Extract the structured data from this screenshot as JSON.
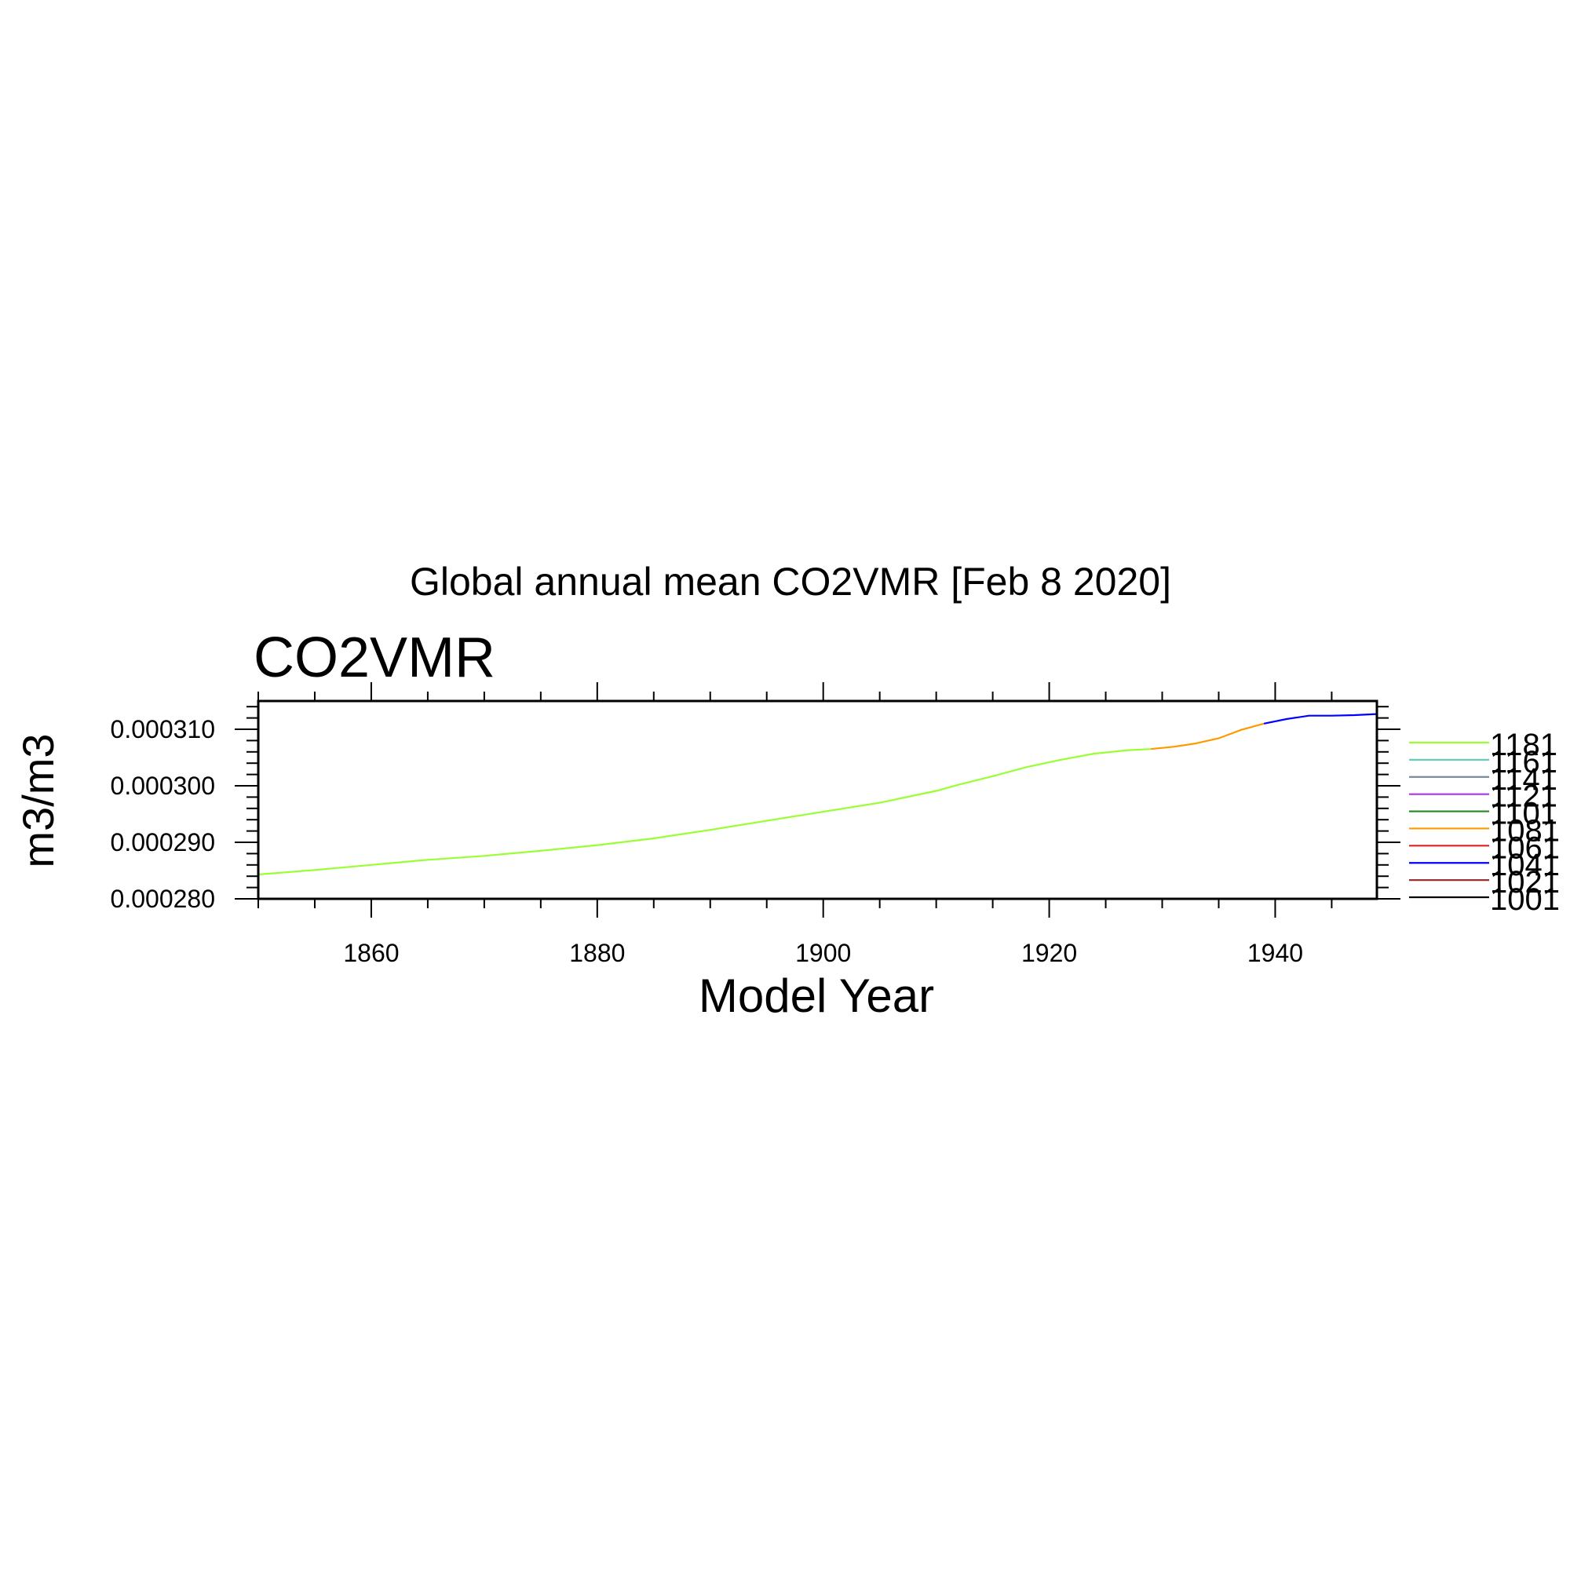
{
  "chart_data": {
    "type": "line",
    "title": "Global annual mean CO2VMR [Feb  8 2020]",
    "subtitle": "CO2VMR",
    "xlabel": "Model Year",
    "ylabel": "m3/m3",
    "xlim": [
      1850,
      1949
    ],
    "ylim": [
      0.00028,
      0.000315
    ],
    "x_ticks": [
      1860,
      1880,
      1900,
      1920,
      1940
    ],
    "y_ticks": [
      0.00028,
      0.00029,
      0.0003,
      0.00031
    ],
    "x_tick_labels": [
      "1860",
      "1880",
      "1900",
      "1920",
      "1940"
    ],
    "y_tick_labels": [
      "0.000280",
      "0.000290",
      "0.000300",
      "0.000310"
    ],
    "grid": false,
    "legend_position": "right",
    "series": [
      {
        "name": "1181",
        "color": "#99ff33",
        "x": [
          1850,
          1855,
          1860,
          1865,
          1870,
          1875,
          1880,
          1885,
          1890,
          1895,
          1900,
          1905,
          1910,
          1912,
          1915,
          1918,
          1921,
          1924,
          1927,
          1929
        ],
        "values": [
          0.0002843,
          0.0002851,
          0.000286,
          0.0002869,
          0.0002876,
          0.0002885,
          0.0002895,
          0.0002907,
          0.0002922,
          0.0002938,
          0.0002954,
          0.000297,
          0.0002991,
          0.0003002,
          0.0003017,
          0.0003033,
          0.0003046,
          0.0003057,
          0.0003063,
          0.0003065
        ]
      },
      {
        "name": "1081",
        "color": "#ff9900",
        "x": [
          1929,
          1931,
          1933,
          1935,
          1937,
          1939
        ],
        "values": [
          0.0003065,
          0.0003069,
          0.0003075,
          0.0003084,
          0.0003099,
          0.000311
        ]
      },
      {
        "name": "1041",
        "color": "#0000ff",
        "x": [
          1939,
          1941,
          1943,
          1945,
          1947,
          1949
        ],
        "values": [
          0.000311,
          0.0003118,
          0.0003124,
          0.0003124,
          0.0003125,
          0.0003127
        ]
      }
    ],
    "legend": [
      {
        "label": "1181",
        "color": "#99ff33"
      },
      {
        "label": "1161",
        "color": "#66ccbb"
      },
      {
        "label": "1141",
        "color": "#778899"
      },
      {
        "label": "1121",
        "color": "#aa33ee"
      },
      {
        "label": "1101",
        "color": "#228822"
      },
      {
        "label": "1081",
        "color": "#ff9900"
      },
      {
        "label": "1061",
        "color": "#dd2222"
      },
      {
        "label": "1041",
        "color": "#0000ff"
      },
      {
        "label": "1021",
        "color": "#993333"
      },
      {
        "label": "1001",
        "color": "#000000"
      }
    ]
  }
}
